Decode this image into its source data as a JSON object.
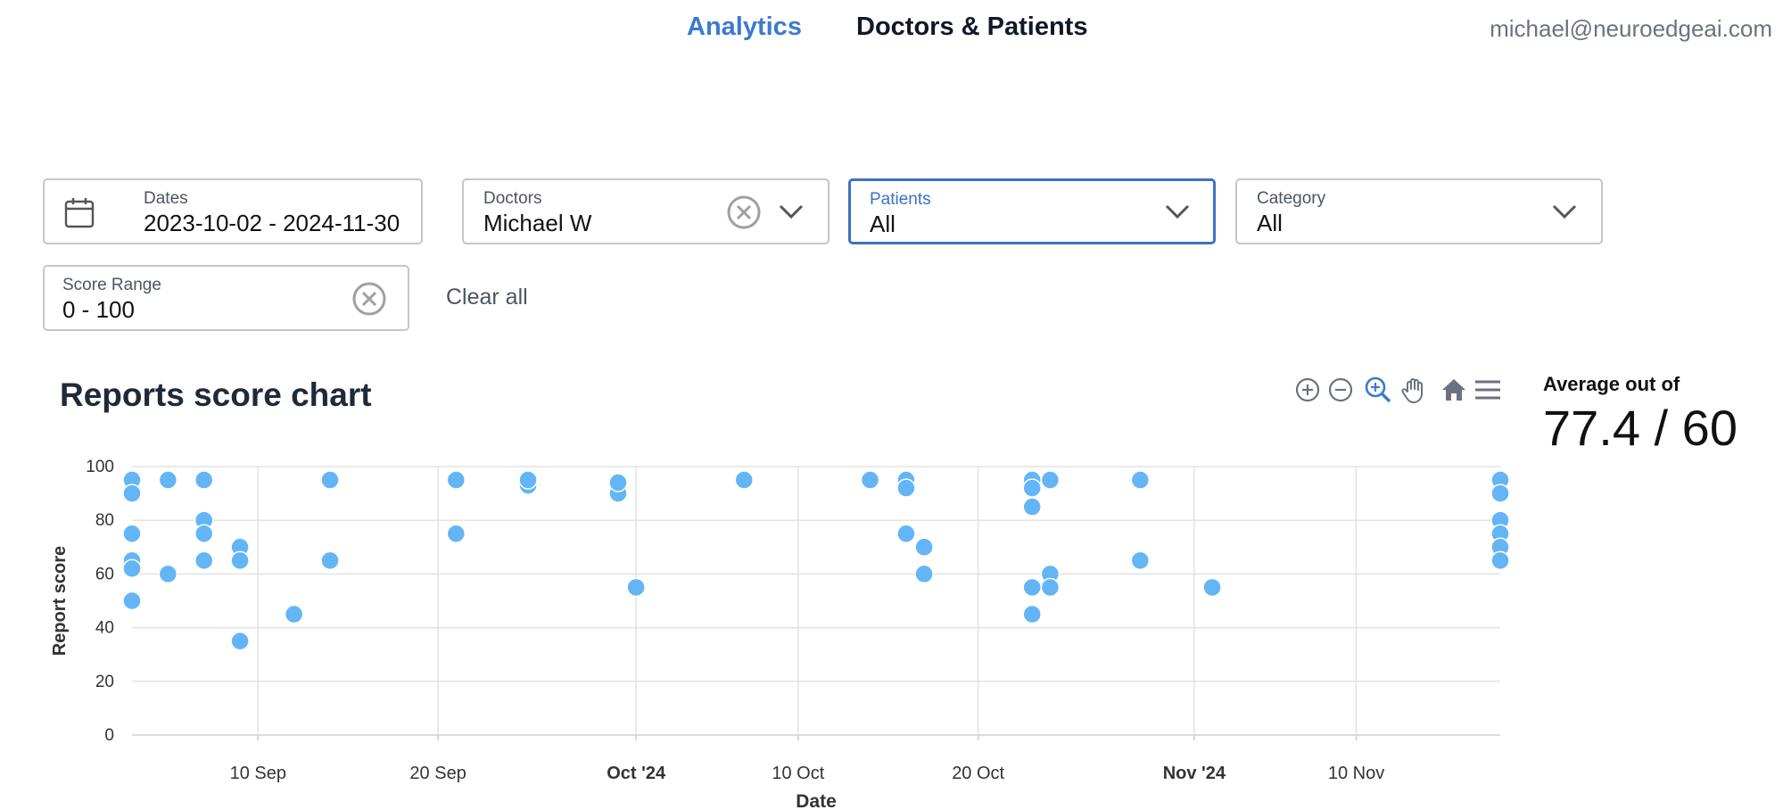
{
  "nav": {
    "analytics": "Analytics",
    "doctors_patients": "Doctors & Patients",
    "user_email": "michael@neuroedgeai.com"
  },
  "filters": {
    "dates": {
      "label": "Dates",
      "value": "2023-10-02 - 2024-11-30"
    },
    "doctors": {
      "label": "Doctors",
      "value": "Michael W"
    },
    "patients": {
      "label": "Patients",
      "value": "All"
    },
    "category": {
      "label": "Category",
      "value": "All"
    },
    "score_range": {
      "label": "Score Range",
      "value": "0 - 100"
    },
    "clear_all": "Clear all"
  },
  "chart_title": "Reports score chart",
  "toolbar_icons": [
    "zoom-in-icon",
    "zoom-out-icon",
    "selection-zoom-icon",
    "pan-icon",
    "home-reset-icon",
    "menu-icon"
  ],
  "average": {
    "label": "Average out of",
    "value": "77.4 / 60"
  },
  "colors": {
    "accent": "#3b7ad0",
    "marker": "#64b5f6",
    "active_border": "#3b72c4"
  },
  "chart_data": {
    "type": "scatter",
    "title": "",
    "xlabel": "Date",
    "ylabel": "Report score",
    "xlim": [
      "2024-09-03",
      "2024-11-18"
    ],
    "ylim": [
      0,
      100
    ],
    "y_ticks": [
      0,
      20,
      40,
      60,
      80,
      100
    ],
    "x_ticks": [
      {
        "date": "2024-09-10",
        "label": "10 Sep",
        "bold": false
      },
      {
        "date": "2024-09-20",
        "label": "20 Sep",
        "bold": false
      },
      {
        "date": "2024-10-01",
        "label": "Oct '24",
        "bold": true
      },
      {
        "date": "2024-10-10",
        "label": "10 Oct",
        "bold": false
      },
      {
        "date": "2024-10-20",
        "label": "20 Oct",
        "bold": false
      },
      {
        "date": "2024-11-01",
        "label": "Nov '24",
        "bold": true
      },
      {
        "date": "2024-11-10",
        "label": "10 Nov",
        "bold": false
      }
    ],
    "grid": true,
    "points": [
      {
        "x": "2024-09-03",
        "y": 95
      },
      {
        "x": "2024-09-03",
        "y": 90
      },
      {
        "x": "2024-09-03",
        "y": 75
      },
      {
        "x": "2024-09-03",
        "y": 65
      },
      {
        "x": "2024-09-03",
        "y": 62
      },
      {
        "x": "2024-09-03",
        "y": 50
      },
      {
        "x": "2024-09-05",
        "y": 95
      },
      {
        "x": "2024-09-05",
        "y": 60
      },
      {
        "x": "2024-09-07",
        "y": 95
      },
      {
        "x": "2024-09-07",
        "y": 80
      },
      {
        "x": "2024-09-07",
        "y": 75
      },
      {
        "x": "2024-09-07",
        "y": 65
      },
      {
        "x": "2024-09-09",
        "y": 70
      },
      {
        "x": "2024-09-09",
        "y": 65
      },
      {
        "x": "2024-09-09",
        "y": 35
      },
      {
        "x": "2024-09-12",
        "y": 45
      },
      {
        "x": "2024-09-14",
        "y": 95
      },
      {
        "x": "2024-09-14",
        "y": 65
      },
      {
        "x": "2024-09-21",
        "y": 95
      },
      {
        "x": "2024-09-21",
        "y": 75
      },
      {
        "x": "2024-09-25",
        "y": 93
      },
      {
        "x": "2024-09-25",
        "y": 95
      },
      {
        "x": "2024-09-30",
        "y": 90
      },
      {
        "x": "2024-09-30",
        "y": 94
      },
      {
        "x": "2024-10-01",
        "y": 55
      },
      {
        "x": "2024-10-07",
        "y": 95
      },
      {
        "x": "2024-10-14",
        "y": 95
      },
      {
        "x": "2024-10-16",
        "y": 95
      },
      {
        "x": "2024-10-16",
        "y": 92
      },
      {
        "x": "2024-10-16",
        "y": 75
      },
      {
        "x": "2024-10-17",
        "y": 70
      },
      {
        "x": "2024-10-17",
        "y": 60
      },
      {
        "x": "2024-10-23",
        "y": 95
      },
      {
        "x": "2024-10-23",
        "y": 92
      },
      {
        "x": "2024-10-23",
        "y": 85
      },
      {
        "x": "2024-10-23",
        "y": 55
      },
      {
        "x": "2024-10-23",
        "y": 45
      },
      {
        "x": "2024-10-24",
        "y": 95
      },
      {
        "x": "2024-10-24",
        "y": 60
      },
      {
        "x": "2024-10-24",
        "y": 55
      },
      {
        "x": "2024-10-29",
        "y": 95
      },
      {
        "x": "2024-10-29",
        "y": 65
      },
      {
        "x": "2024-11-02",
        "y": 55
      },
      {
        "x": "2024-11-18",
        "y": 95
      },
      {
        "x": "2024-11-18",
        "y": 90
      },
      {
        "x": "2024-11-18",
        "y": 80
      },
      {
        "x": "2024-11-18",
        "y": 75
      },
      {
        "x": "2024-11-18",
        "y": 70
      },
      {
        "x": "2024-11-18",
        "y": 65
      }
    ]
  }
}
